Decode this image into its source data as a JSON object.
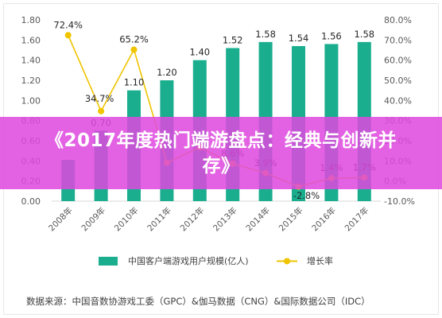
{
  "chart_data": {
    "type": "bar",
    "categories": [
      "2008年",
      "2009年",
      "2010年",
      "2011年",
      "2012年",
      "2013年",
      "2014年",
      "2015年",
      "2016年",
      "2017年"
    ],
    "series": [
      {
        "name": "中国客户端游戏用户规模(亿人)",
        "type": "bar",
        "axis": "left",
        "values": [
          0.41,
          0.7,
          1.1,
          1.2,
          1.4,
          1.52,
          1.58,
          1.54,
          1.56,
          1.58
        ],
        "labels": [
          null,
          "0.70",
          "1.10",
          "1.20",
          "1.40",
          "1.52",
          "1.58",
          "1.54",
          "1.56",
          "1.58"
        ]
      },
      {
        "name": "增长率",
        "type": "line",
        "axis": "right",
        "values": [
          72.4,
          34.7,
          65.2,
          9.1,
          16.7,
          8.6,
          3.9,
          -2.8,
          1.4,
          1.7
        ],
        "labels": [
          "72.4%",
          "34.7%",
          "65.2%",
          null,
          null,
          "8.6%",
          "3.9%",
          "-2.8%",
          "1.4%",
          "1.7%"
        ]
      }
    ],
    "y_left": {
      "ylim": [
        0,
        1.8
      ],
      "ticks": [
        "0.00",
        "0.20",
        "0.40",
        "0.60",
        "0.80",
        "1.00",
        "1.20",
        "1.40",
        "1.60",
        "1.80"
      ]
    },
    "y_right": {
      "ylim": [
        -10,
        80
      ],
      "ticks": [
        "-10.0%",
        "0.0%",
        "10.0%",
        "20.0%",
        "30.0%",
        "40.0%",
        "50.0%",
        "60.0%",
        "70.0%",
        "80.0%"
      ]
    },
    "grid": false,
    "legend_position": "bottom",
    "colors": {
      "bar": "#1aae8e",
      "line": "#f0c400",
      "axis": "#d9d9d9",
      "banner": "#de48de"
    }
  },
  "legend": {
    "bar_label": "中国客户端游戏用户规模(亿人)",
    "line_label": "增长率"
  },
  "source": "数据来源：中国音数协游戏工委（GPC）&伽马数据（CNG）&国际数据公司（IDC）",
  "banner": {
    "title": "《2017年度热门端游盘点：经典与创新并存》"
  }
}
